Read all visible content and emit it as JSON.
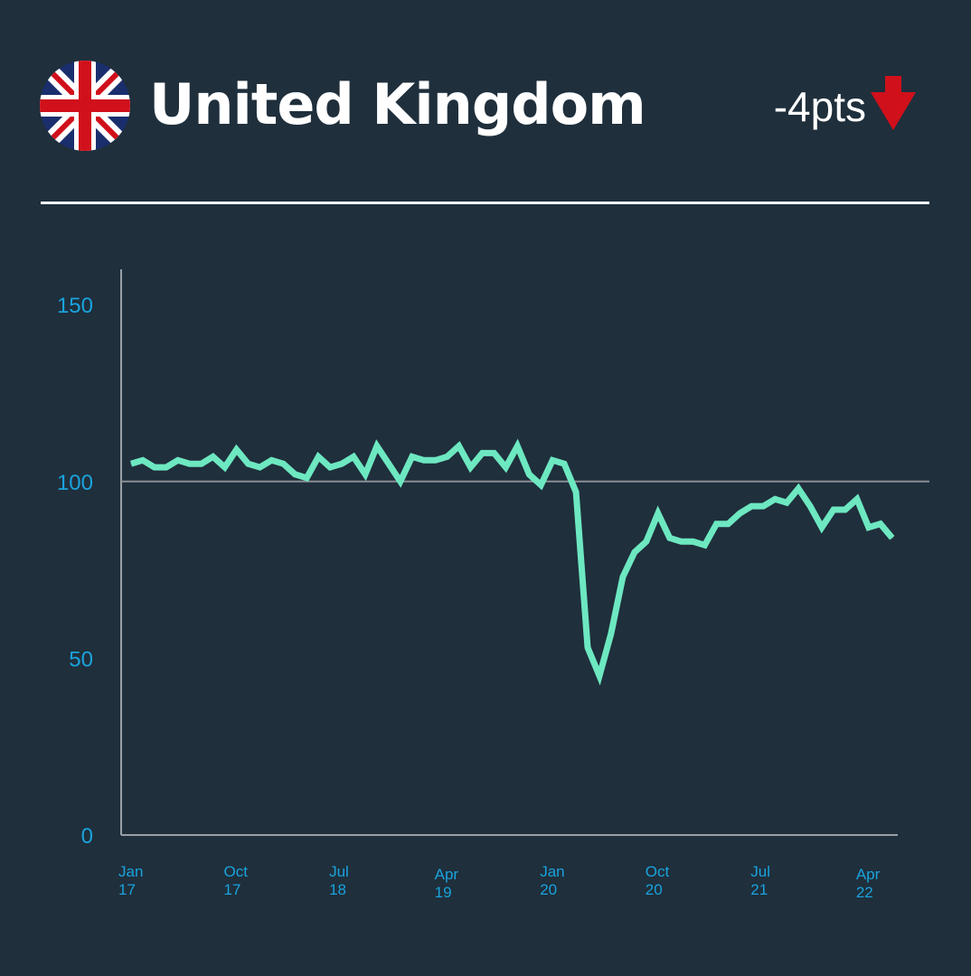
{
  "header": {
    "country": "United Kingdom",
    "change": "-4pts",
    "change_direction": "down",
    "flag_icon": "uk-flag-icon",
    "arrow_icon": "down-arrow-icon"
  },
  "colors": {
    "background": "#1f2f3c",
    "line": "#6de8c1",
    "tick": "#1aa3dd",
    "arrow": "#d0101b",
    "reference": "#8a8f93"
  },
  "chart_data": {
    "type": "line",
    "title": "",
    "xlabel": "",
    "ylabel": "",
    "ylim": [
      0,
      160
    ],
    "yticks": [
      "0",
      "50",
      "100",
      "150"
    ],
    "reference_line": 100,
    "x_ticks": [
      {
        "month": "Jan",
        "year": "17"
      },
      {
        "month": "Oct",
        "year": "17"
      },
      {
        "month": "Jul",
        "year": "18"
      },
      {
        "month": "Apr",
        "year": "19"
      },
      {
        "month": "Jan",
        "year": "20"
      },
      {
        "month": "Oct",
        "year": "20"
      },
      {
        "month": "Jul",
        "year": "21"
      },
      {
        "month": "Apr",
        "year": "22"
      }
    ],
    "x_start": "2017-01",
    "x": [
      "2017-01",
      "2017-02",
      "2017-03",
      "2017-04",
      "2017-05",
      "2017-06",
      "2017-07",
      "2017-08",
      "2017-09",
      "2017-10",
      "2017-11",
      "2017-12",
      "2018-01",
      "2018-02",
      "2018-03",
      "2018-04",
      "2018-05",
      "2018-06",
      "2018-07",
      "2018-08",
      "2018-09",
      "2018-10",
      "2018-11",
      "2018-12",
      "2019-01",
      "2019-02",
      "2019-03",
      "2019-04",
      "2019-05",
      "2019-06",
      "2019-07",
      "2019-08",
      "2019-09",
      "2019-10",
      "2019-11",
      "2019-12",
      "2020-01",
      "2020-02",
      "2020-03",
      "2020-04",
      "2020-05",
      "2020-06",
      "2020-07",
      "2020-08",
      "2020-09",
      "2020-10",
      "2020-11",
      "2020-12",
      "2021-01",
      "2021-02",
      "2021-03",
      "2021-04",
      "2021-05",
      "2021-06",
      "2021-07",
      "2021-08",
      "2021-09",
      "2021-10",
      "2021-11",
      "2021-12",
      "2022-01",
      "2022-02",
      "2022-03",
      "2022-04",
      "2022-05",
      "2022-06"
    ],
    "series": [
      {
        "values": [
          105,
          106,
          104,
          104,
          106,
          105,
          105,
          107,
          104,
          109,
          105,
          104,
          106,
          105,
          102,
          101,
          107,
          104,
          105,
          107,
          102,
          110,
          105,
          100,
          107,
          106,
          106,
          107,
          110,
          104,
          108,
          108,
          104,
          110,
          102,
          99,
          106,
          105,
          97,
          53,
          45,
          57,
          73,
          80,
          83,
          91,
          84,
          83,
          83,
          82,
          88,
          88,
          91,
          93,
          93,
          95,
          94,
          98,
          93,
          87,
          92,
          92,
          95,
          87,
          88,
          84
        ]
      }
    ]
  }
}
